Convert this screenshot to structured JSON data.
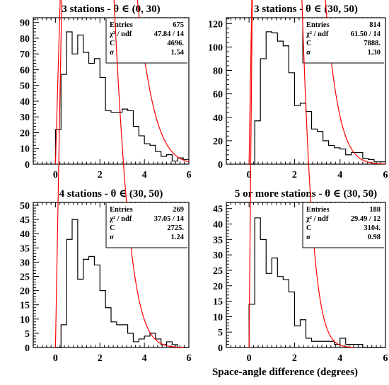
{
  "figure": {
    "xlabel": "Space-angle difference (degrees)",
    "stat_labels": {
      "entries": "Entries",
      "chi2": "χ² / ndf",
      "c": "C",
      "sigma": "σ"
    }
  },
  "chart_data": [
    {
      "type": "histogram",
      "title": "3 stations - θ ∈ (0, 30)",
      "xlim": [
        -1,
        6
      ],
      "ylim": [
        0,
        93
      ],
      "xticks": [
        0,
        2,
        4,
        6
      ],
      "yticks": [
        0,
        10,
        20,
        30,
        40,
        50,
        60,
        70,
        80,
        90
      ],
      "bin_edges": [
        0,
        0.25,
        0.5,
        0.75,
        1,
        1.25,
        1.5,
        1.75,
        2,
        2.25,
        2.5,
        2.75,
        3,
        3.25,
        3.5,
        3.75,
        4,
        4.25,
        4.5,
        4.75,
        5,
        5.25,
        5.5,
        5.75,
        6
      ],
      "counts": [
        22,
        57,
        84,
        70,
        82,
        71,
        64,
        67,
        55,
        34,
        33,
        33,
        35,
        34,
        24,
        18,
        13,
        12,
        8,
        5,
        6,
        2,
        4,
        3
      ],
      "fit": {
        "type": "rayleigh",
        "C": 4696,
        "sigma": 1.54,
        "bin_width": 0.25,
        "color": "#ff0000"
      },
      "stats": {
        "entries": "675",
        "chi2": "47.84 / 14",
        "c": "4696.",
        "sigma": "1.54"
      }
    },
    {
      "type": "histogram",
      "title": "3 stations - θ ∈ (30, 50)",
      "xlim": [
        -1,
        6
      ],
      "ylim": [
        0,
        125
      ],
      "xticks": [
        0,
        2,
        4,
        6
      ],
      "yticks": [
        0,
        20,
        40,
        60,
        80,
        100,
        120
      ],
      "bin_edges": [
        0,
        0.25,
        0.5,
        0.75,
        1,
        1.25,
        1.5,
        1.75,
        2,
        2.25,
        2.5,
        2.75,
        3,
        3.25,
        3.5,
        3.75,
        4,
        4.25,
        4.5,
        4.75,
        5,
        5.25,
        5.5,
        5.75,
        6
      ],
      "counts": [
        0,
        37,
        90,
        113,
        112,
        105,
        101,
        78,
        50,
        52,
        45,
        30,
        28,
        20,
        16,
        14,
        13,
        8,
        10,
        10,
        5,
        4,
        2,
        2
      ],
      "fit": {
        "type": "rayleigh",
        "C": 7888,
        "sigma": 1.3,
        "bin_width": 0.25,
        "color": "#ff0000"
      },
      "stats": {
        "entries": "814",
        "chi2": "61.50 / 14",
        "c": "7888.",
        "sigma": "1.30"
      }
    },
    {
      "type": "histogram",
      "title": "4 stations - θ ∈ (30, 50)",
      "xlim": [
        -1,
        6
      ],
      "ylim": [
        0,
        51
      ],
      "xticks": [
        0,
        2,
        4,
        6
      ],
      "yticks": [
        0,
        5,
        10,
        15,
        20,
        25,
        30,
        35,
        40,
        45,
        50
      ],
      "bin_edges": [
        0,
        0.25,
        0.5,
        0.75,
        1,
        1.25,
        1.5,
        1.75,
        2,
        2.25,
        2.5,
        2.75,
        3,
        3.25,
        3.5,
        3.75,
        4,
        4.25,
        4.5,
        4.75,
        5,
        5.25,
        5.5,
        5.75,
        6
      ],
      "counts": [
        0,
        8,
        38,
        45,
        24,
        31,
        32,
        29,
        20,
        14,
        9,
        8,
        8,
        5,
        2,
        3,
        4,
        5,
        3,
        1,
        2,
        1,
        0,
        0
      ],
      "fit": {
        "type": "rayleigh",
        "C": 2725,
        "sigma": 1.24,
        "bin_width": 0.25,
        "color": "#ff0000"
      },
      "stats": {
        "entries": "269",
        "chi2": "37.05 / 14",
        "c": "2725.",
        "sigma": "1.24"
      }
    },
    {
      "type": "histogram",
      "title": "5 or more stations - θ ∈ (30, 50)",
      "xlim": [
        -1,
        6
      ],
      "ylim": [
        0,
        47
      ],
      "xticks": [
        0,
        2,
        4,
        6
      ],
      "yticks": [
        0,
        5,
        10,
        15,
        20,
        25,
        30,
        35,
        40,
        45
      ],
      "bin_edges": [
        0,
        0.25,
        0.5,
        0.75,
        1,
        1.25,
        1.5,
        1.75,
        2,
        2.25,
        2.5,
        2.75,
        3,
        3.25,
        3.5,
        3.75,
        4,
        4.25,
        4.5,
        4.75,
        5,
        5.25,
        5.5,
        5.75,
        6
      ],
      "counts": [
        14,
        42,
        35,
        24,
        29,
        23,
        22,
        18,
        7,
        9,
        3,
        2,
        2,
        2,
        2,
        1,
        3,
        1,
        1,
        1,
        0,
        0,
        0,
        0
      ],
      "fit": {
        "type": "rayleigh",
        "C": 3104,
        "sigma": 0.98,
        "bin_width": 0.25,
        "color": "#ff0000"
      },
      "stats": {
        "entries": "188",
        "chi2": "29.49 / 12",
        "c": "3104.",
        "sigma": "0.98"
      }
    }
  ]
}
